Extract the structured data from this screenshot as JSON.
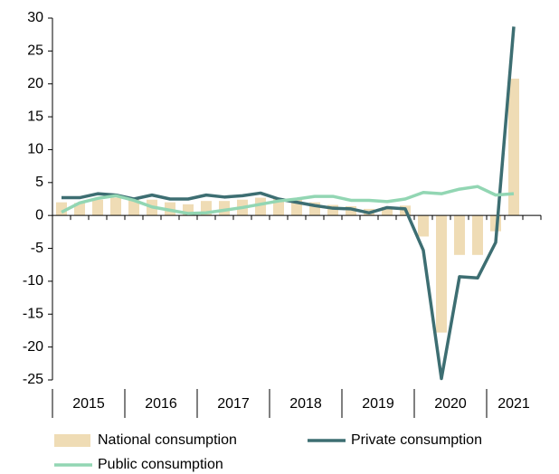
{
  "chart_data": {
    "type": "bar-line",
    "categories": [
      "2015",
      null,
      null,
      null,
      "2016",
      null,
      null,
      null,
      "2017",
      null,
      null,
      null,
      "2018",
      null,
      null,
      null,
      "2019",
      null,
      null,
      null,
      "2020",
      null,
      null,
      null,
      "2021",
      null
    ],
    "series": [
      {
        "name": "National consumption",
        "type": "bar",
        "color": "#efdcb5",
        "values": [
          2.0,
          1.9,
          2.4,
          2.7,
          2.5,
          2.4,
          2.0,
          1.7,
          2.2,
          2.2,
          2.4,
          2.7,
          2.6,
          2.4,
          2.0,
          1.6,
          1.4,
          1.0,
          1.3,
          1.5,
          -3.2,
          -17.8,
          -6.0,
          -6.0,
          -2.4,
          20.8
        ]
      },
      {
        "name": "Private consumption",
        "type": "line",
        "color": "#3d6e72",
        "values": [
          2.7,
          2.7,
          3.3,
          3.1,
          2.5,
          3.1,
          2.5,
          2.5,
          3.1,
          2.8,
          3.0,
          3.4,
          2.5,
          2.0,
          1.5,
          1.1,
          1.0,
          0.4,
          1.2,
          1.0,
          -5.3,
          -24.8,
          -9.3,
          -9.5,
          -4.1,
          28.7
        ]
      },
      {
        "name": "Public consumption",
        "type": "line",
        "color": "#92d6b3",
        "values": [
          0.5,
          1.9,
          2.6,
          3.0,
          2.3,
          1.3,
          0.8,
          0.3,
          0.4,
          0.8,
          1.2,
          1.7,
          2.2,
          2.5,
          2.9,
          2.9,
          2.3,
          2.3,
          2.1,
          2.5,
          3.5,
          3.3,
          4.0,
          4.4,
          3.1,
          3.3
        ]
      }
    ],
    "ylim": [
      -25,
      30
    ],
    "yticks": [
      -25,
      -20,
      -15,
      -10,
      -5,
      0,
      5,
      10,
      15,
      20,
      25,
      30
    ]
  }
}
